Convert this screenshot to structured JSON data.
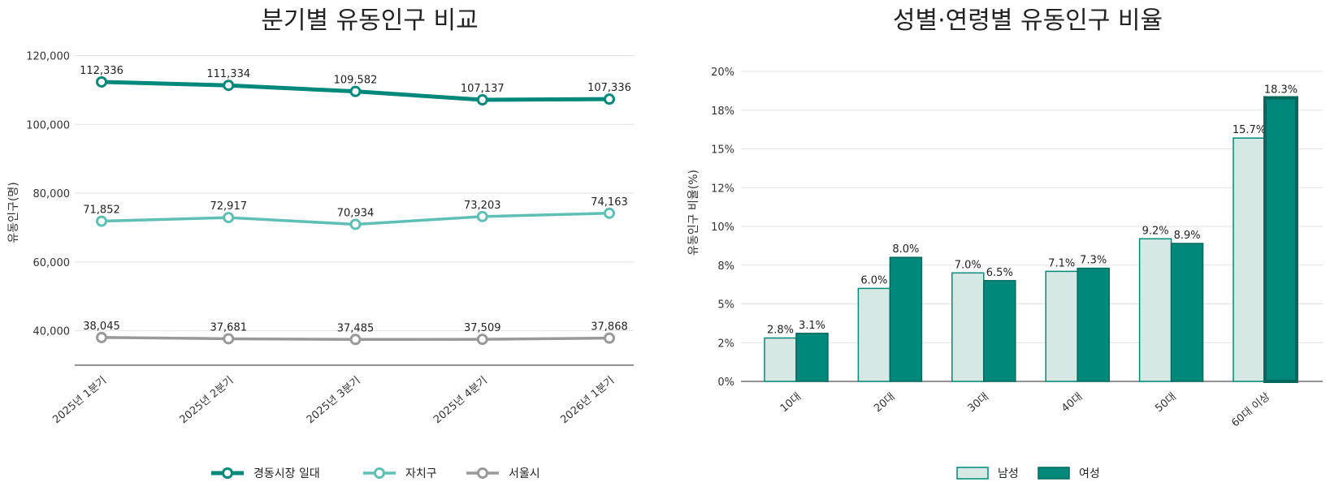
{
  "chart_data": [
    {
      "type": "line",
      "title": "분기별 유동인구 비교",
      "xlabel": "",
      "ylabel": "유동인구(명)",
      "categories": [
        "2025년 1분기",
        "2025년 2분기",
        "2025년 3분기",
        "2025년 4분기",
        "2026년 1분기"
      ],
      "ylim": [
        30000,
        122000
      ],
      "yticks": [
        40000,
        60000,
        80000,
        100000,
        120000
      ],
      "ytick_labels": [
        "40,000",
        "60,000",
        "80,000",
        "100,000",
        "120,000"
      ],
      "grid": true,
      "legend_position": "bottom",
      "series": [
        {
          "name": "경동시장 일대",
          "values": [
            112336,
            111334,
            109582,
            107137,
            107336
          ],
          "labels": [
            "112,336",
            "111,334",
            "109,582",
            "107,137",
            "107,336"
          ],
          "color": "#00897b"
        },
        {
          "name": "자치구",
          "values": [
            71852,
            72917,
            70934,
            73203,
            74163
          ],
          "labels": [
            "71,852",
            "72,917",
            "70,934",
            "73,203",
            "74,163"
          ],
          "color": "#5fbfb4"
        },
        {
          "name": "서울시",
          "values": [
            38045,
            37681,
            37485,
            37509,
            37868
          ],
          "labels": [
            "38,045",
            "37,681",
            "37,485",
            "37,509",
            "37,868"
          ],
          "color": "#999999"
        }
      ]
    },
    {
      "type": "bar",
      "title": "성별·연령별 유동인구 비율",
      "xlabel": "",
      "ylabel": "유동인구 비율(%)",
      "categories": [
        "10대",
        "20대",
        "30대",
        "40대",
        "50대",
        "60대 이상"
      ],
      "ylim": [
        0,
        20
      ],
      "yticks": [
        0,
        2.5,
        5,
        7.5,
        10,
        12.5,
        15,
        17.5,
        20
      ],
      "ytick_labels": [
        "0%",
        "2%",
        "5%",
        "8%",
        "10%",
        "12%",
        "15%",
        "18%",
        "20%"
      ],
      "grid": true,
      "legend_position": "bottom",
      "highlight_category": "60대 이상",
      "series": [
        {
          "name": "남성",
          "values": [
            2.8,
            6.0,
            7.0,
            7.1,
            9.2,
            15.7
          ],
          "labels": [
            "2.8%",
            "6.0%",
            "7.0%",
            "7.1%",
            "9.2%",
            "15.7%"
          ],
          "color": "#d6e8e4",
          "edge": "#00897b"
        },
        {
          "name": "여성",
          "values": [
            3.1,
            8.0,
            6.5,
            7.3,
            8.9,
            18.3
          ],
          "labels": [
            "3.1%",
            "8.0%",
            "6.5%",
            "7.3%",
            "8.9%",
            "18.3%"
          ],
          "color": "#00897b",
          "edge": "#00695c"
        }
      ]
    }
  ]
}
